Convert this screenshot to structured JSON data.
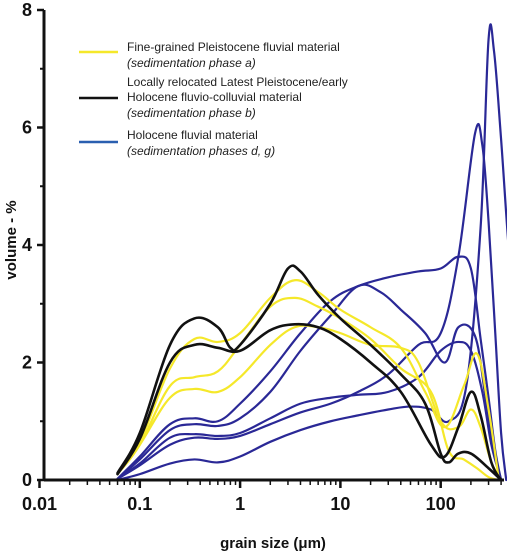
{
  "chart_data": {
    "type": "line",
    "xlabel": "grain size (μm)",
    "ylabel": "volume - %",
    "xscale": "log",
    "xlim": [
      0.01,
      1000
    ],
    "ylim": [
      0,
      8
    ],
    "x_tick_labels": [
      "0.01",
      "0.1",
      "1",
      "10",
      "100"
    ],
    "y_tick_labels": [
      "0",
      "2",
      "4",
      "6",
      "8"
    ],
    "legend": {
      "placement": "top-left",
      "entries": [
        {
          "color": "#f5e82a",
          "line1": "Fine-grained Pleistocene fluvial material",
          "line2": "",
          "sub": "(sedimentation phase a)"
        },
        {
          "color": "#111111",
          "line1": "Locally relocated Latest Pleistocene/early",
          "line2": "Holocene fluvio-colluvial material",
          "sub": "(sedimentation phase b)"
        },
        {
          "color": "#2a5fb0",
          "line1": "Holocene fluvial material",
          "line2": "",
          "sub": "(sedimentation phases d, g)"
        }
      ]
    },
    "series": [
      {
        "group": "yellow",
        "color": "#f5e82a",
        "points": [
          [
            0.06,
            0.1
          ],
          [
            0.1,
            0.6
          ],
          [
            0.2,
            1.6
          ],
          [
            0.35,
            1.75
          ],
          [
            0.6,
            1.85
          ],
          [
            1,
            2.3
          ],
          [
            2,
            2.95
          ],
          [
            3.5,
            3.1
          ],
          [
            6,
            2.95
          ],
          [
            10,
            2.75
          ],
          [
            20,
            2.4
          ],
          [
            40,
            1.9
          ],
          [
            80,
            1.5
          ],
          [
            120,
            0.5
          ],
          [
            170,
            0.35
          ],
          [
            230,
            0.2
          ],
          [
            300,
            0.05
          ],
          [
            380,
            0
          ]
        ]
      },
      {
        "group": "yellow",
        "color": "#f5e82a",
        "points": [
          [
            0.06,
            0.1
          ],
          [
            0.1,
            0.6
          ],
          [
            0.2,
            1.4
          ],
          [
            0.35,
            1.55
          ],
          [
            0.6,
            1.5
          ],
          [
            1,
            1.75
          ],
          [
            2,
            2.3
          ],
          [
            3.5,
            2.6
          ],
          [
            6,
            2.6
          ],
          [
            10,
            2.5
          ],
          [
            20,
            2.3
          ],
          [
            40,
            2.25
          ],
          [
            60,
            2.0
          ],
          [
            100,
            1.0
          ],
          [
            150,
            0.9
          ],
          [
            200,
            1.2
          ],
          [
            250,
            0.9
          ],
          [
            320,
            0.3
          ],
          [
            400,
            0
          ]
        ]
      },
      {
        "group": "yellow",
        "color": "#f5e82a",
        "points": [
          [
            0.06,
            0.1
          ],
          [
            0.1,
            0.65
          ],
          [
            0.2,
            1.9
          ],
          [
            0.35,
            2.4
          ],
          [
            0.6,
            2.35
          ],
          [
            1,
            2.5
          ],
          [
            2,
            3.1
          ],
          [
            3.5,
            3.4
          ],
          [
            6,
            3.2
          ],
          [
            10,
            2.9
          ],
          [
            20,
            2.6
          ],
          [
            40,
            2.25
          ],
          [
            70,
            1.5
          ],
          [
            110,
            0.9
          ],
          [
            170,
            1.6
          ],
          [
            230,
            2.15
          ],
          [
            300,
            1.2
          ],
          [
            380,
            0
          ]
        ]
      },
      {
        "group": "black",
        "color": "#111111",
        "points": [
          [
            0.06,
            0.12
          ],
          [
            0.1,
            0.8
          ],
          [
            0.2,
            2.3
          ],
          [
            0.35,
            2.75
          ],
          [
            0.6,
            2.6
          ],
          [
            0.8,
            2.25
          ],
          [
            1,
            2.3
          ],
          [
            2,
            3.0
          ],
          [
            3,
            3.6
          ],
          [
            4,
            3.55
          ],
          [
            6,
            3.15
          ],
          [
            10,
            2.75
          ],
          [
            20,
            2.3
          ],
          [
            40,
            1.8
          ],
          [
            70,
            1.3
          ],
          [
            100,
            0.45
          ],
          [
            120,
            0.3
          ],
          [
            150,
            0.45
          ],
          [
            200,
            0.45
          ],
          [
            300,
            0.2
          ],
          [
            400,
            0
          ]
        ]
      },
      {
        "group": "black",
        "color": "#111111",
        "points": [
          [
            0.06,
            0.1
          ],
          [
            0.1,
            0.7
          ],
          [
            0.2,
            2.0
          ],
          [
            0.35,
            2.3
          ],
          [
            0.6,
            2.25
          ],
          [
            1,
            2.2
          ],
          [
            2,
            2.55
          ],
          [
            3.5,
            2.65
          ],
          [
            6,
            2.6
          ],
          [
            10,
            2.4
          ],
          [
            20,
            2.0
          ],
          [
            40,
            1.5
          ],
          [
            80,
            0.6
          ],
          [
            110,
            0.4
          ],
          [
            150,
            0.9
          ],
          [
            200,
            1.5
          ],
          [
            250,
            1.1
          ],
          [
            320,
            0.3
          ],
          [
            400,
            0
          ]
        ]
      },
      {
        "group": "blue",
        "color": "#2a2896",
        "points": [
          [
            0.06,
            0
          ],
          [
            0.1,
            0.1
          ],
          [
            0.2,
            0.28
          ],
          [
            0.35,
            0.35
          ],
          [
            0.6,
            0.3
          ],
          [
            1,
            0.4
          ],
          [
            2,
            0.65
          ],
          [
            4,
            0.85
          ],
          [
            8,
            1.0
          ],
          [
            15,
            1.1
          ],
          [
            30,
            1.2
          ],
          [
            50,
            1.25
          ],
          [
            80,
            1.2
          ],
          [
            120,
            1.0
          ],
          [
            180,
            1.6
          ],
          [
            250,
            4.3
          ],
          [
            300,
            7.5
          ],
          [
            340,
            7.3
          ],
          [
            400,
            5.8
          ],
          [
            500,
            3.5
          ],
          [
            650,
            1.8
          ],
          [
            800,
            0.6
          ]
        ]
      },
      {
        "group": "blue",
        "color": "#2a2896",
        "points": [
          [
            0.06,
            0.02
          ],
          [
            0.1,
            0.25
          ],
          [
            0.2,
            0.6
          ],
          [
            0.35,
            0.72
          ],
          [
            0.6,
            0.7
          ],
          [
            1,
            0.75
          ],
          [
            2,
            0.95
          ],
          [
            4,
            1.15
          ],
          [
            8,
            1.3
          ],
          [
            15,
            1.5
          ],
          [
            30,
            1.8
          ],
          [
            60,
            2.3
          ],
          [
            100,
            2.5
          ],
          [
            150,
            3.8
          ],
          [
            220,
            5.9
          ],
          [
            260,
            5.7
          ],
          [
            300,
            4.4
          ],
          [
            350,
            2.5
          ],
          [
            400,
            0.8
          ],
          [
            450,
            0
          ]
        ]
      },
      {
        "group": "blue",
        "color": "#2a2896",
        "points": [
          [
            0.06,
            0.02
          ],
          [
            0.1,
            0.35
          ],
          [
            0.2,
            0.85
          ],
          [
            0.35,
            0.95
          ],
          [
            0.6,
            0.92
          ],
          [
            1,
            1.05
          ],
          [
            2,
            1.5
          ],
          [
            4,
            2.2
          ],
          [
            8,
            2.8
          ],
          [
            15,
            3.3
          ],
          [
            25,
            3.2
          ],
          [
            40,
            2.9
          ],
          [
            70,
            2.5
          ],
          [
            110,
            2.0
          ],
          [
            150,
            2.6
          ],
          [
            220,
            2.45
          ],
          [
            280,
            1.4
          ],
          [
            340,
            0.5
          ],
          [
            400,
            0
          ]
        ]
      },
      {
        "group": "blue",
        "color": "#2a2896",
        "points": [
          [
            0.06,
            0.02
          ],
          [
            0.1,
            0.4
          ],
          [
            0.2,
            0.95
          ],
          [
            0.35,
            1.05
          ],
          [
            0.6,
            1.0
          ],
          [
            1,
            1.3
          ],
          [
            2,
            1.85
          ],
          [
            4,
            2.5
          ],
          [
            8,
            3.05
          ],
          [
            15,
            3.3
          ],
          [
            30,
            3.45
          ],
          [
            60,
            3.55
          ],
          [
            100,
            3.6
          ],
          [
            150,
            3.8
          ],
          [
            200,
            3.6
          ],
          [
            250,
            2.4
          ],
          [
            300,
            1.4
          ],
          [
            350,
            0.5
          ],
          [
            400,
            0
          ]
        ]
      },
      {
        "group": "blue",
        "color": "#2a2896",
        "points": [
          [
            0.06,
            0.02
          ],
          [
            0.1,
            0.28
          ],
          [
            0.2,
            0.72
          ],
          [
            0.35,
            0.78
          ],
          [
            0.6,
            0.75
          ],
          [
            1,
            0.8
          ],
          [
            2,
            1.05
          ],
          [
            4,
            1.3
          ],
          [
            8,
            1.4
          ],
          [
            15,
            1.45
          ],
          [
            30,
            1.5
          ],
          [
            60,
            1.75
          ],
          [
            100,
            2.2
          ],
          [
            150,
            2.35
          ],
          [
            200,
            2.2
          ],
          [
            260,
            1.5
          ],
          [
            320,
            0.6
          ],
          [
            400,
            0
          ]
        ]
      }
    ]
  }
}
